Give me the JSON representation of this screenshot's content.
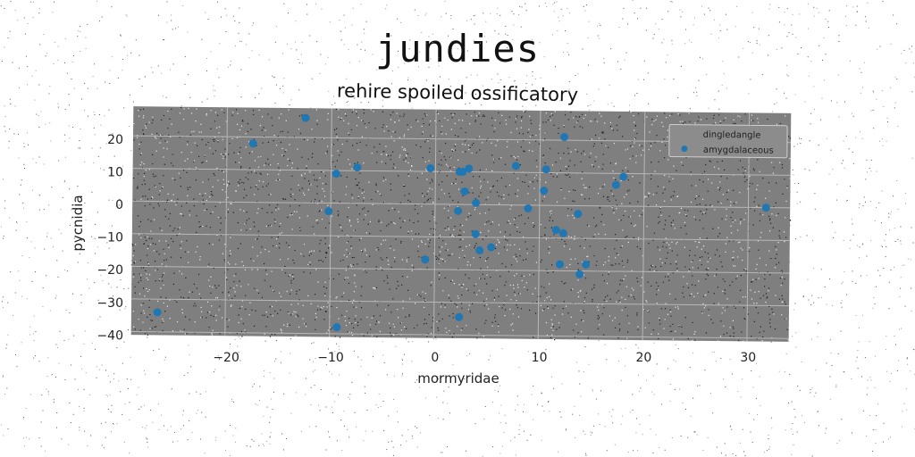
{
  "page": {
    "title": "jundies",
    "subtitle": "rehire spoiled ossificatory"
  },
  "colors": {
    "plot_background": "#7f7f7f",
    "grid": "#b8b8b8",
    "marker": "#1f77b4",
    "noise_dark": "#222222",
    "noise_light": "#e8e8e8"
  },
  "chart_data": {
    "type": "scatter",
    "title": "rehire spoiled ossificatory",
    "xlabel": "mormyridae",
    "ylabel": "pycnidia",
    "xlim": [
      -29,
      34
    ],
    "ylim": [
      -41,
      29
    ],
    "xticks": [
      -20,
      -10,
      0,
      10,
      20,
      30
    ],
    "yticks": [
      -40,
      -30,
      -20,
      -10,
      0,
      10,
      20
    ],
    "grid": true,
    "legend": {
      "placement": "top-right",
      "title": "dingledangle",
      "entries": [
        "amygdalaceous"
      ]
    },
    "series": [
      {
        "name": "amygdalaceous",
        "x": [
          -26.5,
          -17.5,
          -12.5,
          -9.5,
          -10.2,
          -7.5,
          -9.3,
          -0.5,
          -0.9,
          2.3,
          2.6,
          3.2,
          2.8,
          3.9,
          2.2,
          3.9,
          4.3,
          5.4,
          2.4,
          7.7,
          10.6,
          12.3,
          10.4,
          8.9,
          13.7,
          11.6,
          12.3,
          12.0,
          14.5,
          13.9,
          17.3,
          18.0,
          31.7
        ],
        "y": [
          -34,
          18,
          26,
          9,
          -2.5,
          11,
          -38,
          11,
          -17,
          10,
          10,
          11,
          4,
          0.5,
          -2,
          -9,
          -14,
          -13,
          -34.5,
          12,
          11,
          21,
          4.5,
          -1,
          -2.5,
          -7.5,
          -8.5,
          -18,
          -18,
          -21,
          6.5,
          9,
          0
        ]
      }
    ]
  }
}
